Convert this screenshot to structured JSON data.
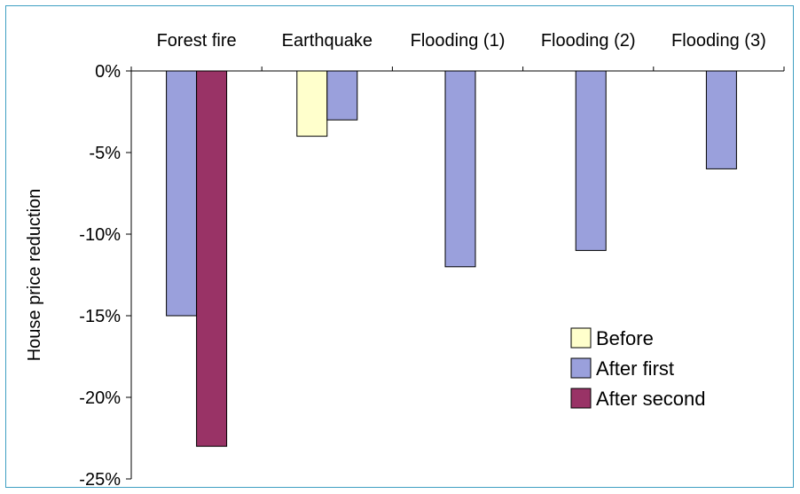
{
  "chart_data": {
    "type": "bar",
    "title": "",
    "xlabel": "",
    "ylabel": "House price reduction",
    "categories": [
      "Forest fire",
      "Earthquake",
      "Flooding (1)",
      "Flooding (2)",
      "Flooding (3)"
    ],
    "series": [
      {
        "name": "Before",
        "color": "#ffffcc",
        "values": [
          null,
          -4,
          null,
          null,
          null
        ]
      },
      {
        "name": "After first",
        "color": "#9aa0dc",
        "values": [
          -15,
          -3,
          -12,
          -11,
          -6
        ]
      },
      {
        "name": "After second",
        "color": "#993366",
        "values": [
          -23,
          null,
          null,
          null,
          null
        ]
      }
    ],
    "ylim": [
      -25,
      0
    ],
    "yticks": [
      0,
      -5,
      -10,
      -15,
      -20,
      -25
    ],
    "ytick_labels": [
      "0%",
      "-5%",
      "-10%",
      "-15%",
      "-20%",
      "-25%"
    ],
    "grid": false,
    "legend_position": "bottom-right"
  },
  "colors": {
    "frame_border": "#3f9fc3",
    "bar_stroke": "#000000"
  }
}
